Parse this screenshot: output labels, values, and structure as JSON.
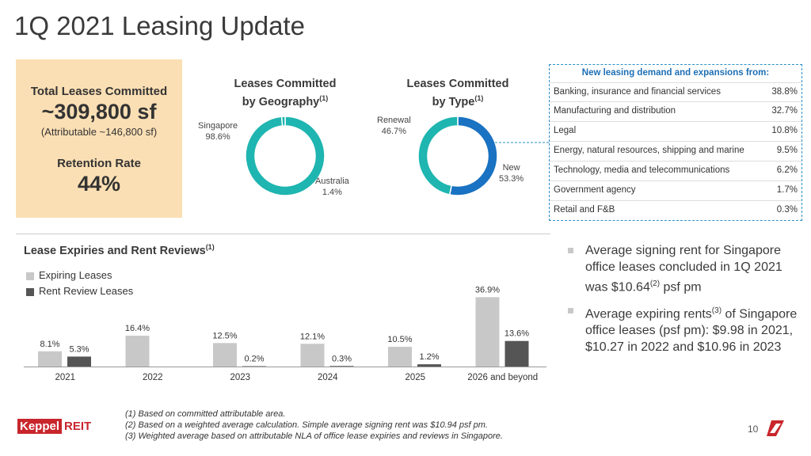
{
  "title": "1Q 2021 Leasing Update",
  "summary": {
    "total_label": "Total Leases Committed",
    "total_value": "~309,800 sf",
    "attributable": "(Attributable ~146,800 sf)",
    "retention_label": "Retention Rate",
    "retention_value": "44%"
  },
  "geo_title": {
    "line1": "Leases Committed",
    "line2": "by Geography",
    "sup": "(1)"
  },
  "type_title": {
    "line1": "Leases Committed",
    "line2": "by Type",
    "sup": "(1)"
  },
  "demand": {
    "title": "New leasing demand and expansions from:",
    "rows": [
      {
        "name": "Banking, insurance and financial services",
        "value": "38.8%"
      },
      {
        "name": "Manufacturing and distribution",
        "value": "32.7%"
      },
      {
        "name": "Legal",
        "value": "10.8%"
      },
      {
        "name": "Energy, natural resources, shipping and marine",
        "value": "9.5%"
      },
      {
        "name": "Technology, media and telecommunications",
        "value": "6.2%"
      },
      {
        "name": "Government agency",
        "value": "1.7%"
      },
      {
        "name": "Retail and F&B",
        "value": "0.3%"
      }
    ]
  },
  "expiries": {
    "title": "Lease Expiries and Rent Reviews",
    "sup": "(1)"
  },
  "bullets": {
    "b1": {
      "pre": "Average signing rent for Singapore office leases concluded in 1Q 2021 was $10.64",
      "sup": "(2)",
      "post": " psf pm"
    },
    "b2": {
      "pre": "Average expiring rents",
      "sup": "(3)",
      "post": " of Singapore office leases (psf pm): $9.98 in 2021, $10.27 in 2022 and $10.96 in 2023"
    }
  },
  "footnotes": [
    "(1) Based on committed attributable area.",
    "(2) Based on a weighted average calculation. Simple average signing rent was $10.94 psf pm.",
    "(3) Weighted average based on attributable NLA of office lease expiries and reviews in Singapore."
  ],
  "logo": {
    "part1": "Keppel",
    "part2": "REIT"
  },
  "page_number": "10",
  "colors": {
    "teal": "#1fb5b0",
    "blue": "#1a72c2",
    "light_grey": "#c8c8c8",
    "dark_grey": "#555555",
    "summary_bg": "#fbdfb4",
    "logo_red": "#c8262c"
  },
  "chart_data": [
    {
      "type": "pie",
      "title": "Leases Committed by Geography",
      "slices": [
        {
          "label": "Singapore",
          "value": 98.6,
          "display": "98.6%",
          "color": "#1fb5b0"
        },
        {
          "label": "Australia",
          "value": 1.4,
          "display": "1.4%",
          "color": "#1fb5b0"
        }
      ]
    },
    {
      "type": "pie",
      "title": "Leases Committed by Type",
      "slices": [
        {
          "label": "New",
          "value": 53.3,
          "display": "53.3%",
          "color": "#1a72c2"
        },
        {
          "label": "Renewal",
          "value": 46.7,
          "display": "46.7%",
          "color": "#1fb5b0"
        }
      ]
    },
    {
      "type": "bar",
      "title": "Lease Expiries and Rent Reviews",
      "categories": [
        "2021",
        "2022",
        "2023",
        "2024",
        "2025",
        "2026 and beyond"
      ],
      "series": [
        {
          "name": "Expiring Leases",
          "color": "#c8c8c8",
          "values": [
            8.1,
            16.4,
            12.5,
            12.1,
            10.5,
            36.9
          ],
          "labels": [
            "8.1%",
            "16.4%",
            "12.5%",
            "12.1%",
            "10.5%",
            "36.9%"
          ]
        },
        {
          "name": "Rent Review Leases",
          "color": "#555555",
          "values": [
            5.3,
            null,
            0.2,
            0.3,
            1.2,
            13.6
          ],
          "labels": [
            "5.3%",
            "",
            "0.2%",
            "0.3%",
            "1.2%",
            "13.6%"
          ]
        }
      ],
      "ylim": [
        0,
        40
      ]
    }
  ]
}
